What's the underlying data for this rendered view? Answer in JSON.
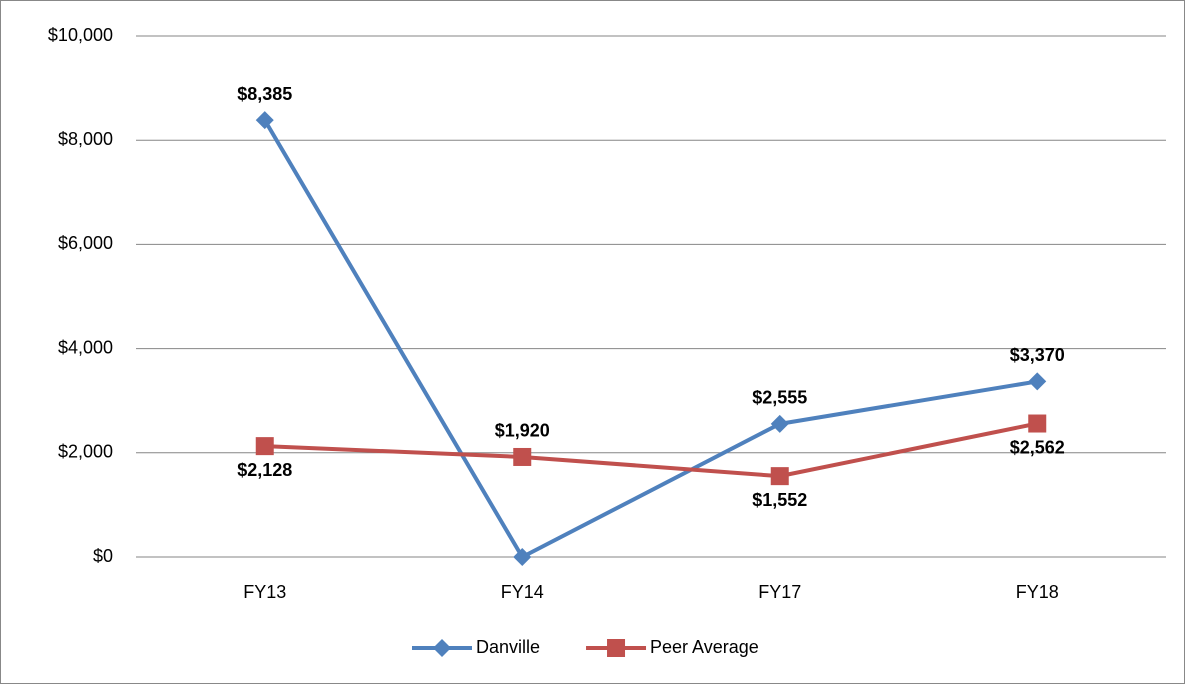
{
  "chart_data": {
    "type": "line",
    "categories": [
      "FY13",
      "FY14",
      "FY17",
      "FY18"
    ],
    "series": [
      {
        "name": "Danville",
        "color": "#4f81bd",
        "marker": "diamond",
        "values": [
          8385,
          0,
          2555,
          3370
        ],
        "value_labels": [
          "$8,385",
          null,
          "$2,555",
          "$3,370"
        ]
      },
      {
        "name": "Peer Average",
        "color": "#c0504d",
        "marker": "square",
        "values": [
          2128,
          1920,
          1552,
          2562
        ],
        "value_labels": [
          "$2,128",
          "$1,920",
          "$1,552",
          "$2,562"
        ]
      }
    ],
    "ylim": [
      0,
      10000
    ],
    "yticks": [
      {
        "value": 0,
        "label": "$0"
      },
      {
        "value": 2000,
        "label": "$2,000"
      },
      {
        "value": 4000,
        "label": "$4,000"
      },
      {
        "value": 6000,
        "label": "$6,000"
      },
      {
        "value": 8000,
        "label": "$8,000"
      },
      {
        "value": 10000,
        "label": "$10,000"
      }
    ],
    "grid": true,
    "legend": "bottom"
  }
}
